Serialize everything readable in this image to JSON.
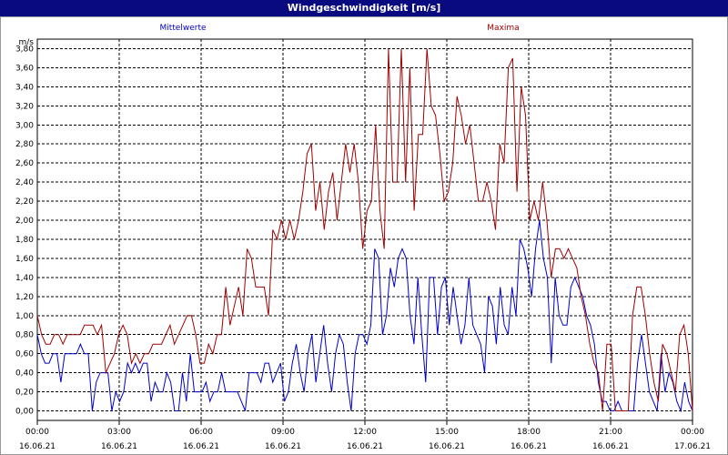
{
  "window": {
    "title": "Windgeschwindigkeit [m/s]"
  },
  "chart_data": {
    "type": "line",
    "ylabel": "m/s",
    "ylim": [
      -0.1,
      3.9
    ],
    "yticks": [
      "0,00",
      "0,20",
      "0,40",
      "0,60",
      "0,80",
      "1,00",
      "1,20",
      "1,40",
      "1,60",
      "1,80",
      "2,00",
      "2,20",
      "2,40",
      "2,60",
      "2,80",
      "3,00",
      "3,20",
      "3,40",
      "3,60",
      "3,80"
    ],
    "xlim_hours": [
      0,
      24
    ],
    "xticks": [
      {
        "time": "00:00",
        "date": "16.06.21"
      },
      {
        "time": "03:00",
        "date": "16.06.21"
      },
      {
        "time": "06:00",
        "date": "16.06.21"
      },
      {
        "time": "09:00",
        "date": "16.06.21"
      },
      {
        "time": "12:00",
        "date": "16.06.21"
      },
      {
        "time": "15:00",
        "date": "16.06.21"
      },
      {
        "time": "18:00",
        "date": "16.06.21"
      },
      {
        "time": "21:00",
        "date": "16.06.21"
      },
      {
        "time": "00:00",
        "date": "17.06.21"
      }
    ],
    "grid": true,
    "series": [
      {
        "name": "Mittelwerte",
        "color": "#0000cc",
        "values": [
          0.8,
          0.6,
          0.5,
          0.5,
          0.6,
          0.6,
          0.3,
          0.6,
          0.6,
          0.6,
          0.6,
          0.7,
          0.6,
          0.6,
          0.0,
          0.3,
          0.4,
          0.4,
          0.4,
          0.0,
          0.2,
          0.1,
          0.2,
          0.5,
          0.4,
          0.5,
          0.4,
          0.5,
          0.5,
          0.1,
          0.3,
          0.2,
          0.2,
          0.4,
          0.3,
          0.0,
          0.0,
          0.4,
          0.1,
          0.6,
          0.2,
          0.2,
          0.2,
          0.3,
          0.1,
          0.2,
          0.2,
          0.4,
          0.2,
          0.2,
          0.2,
          0.2,
          0.1,
          0.0,
          0.4,
          0.4,
          0.4,
          0.3,
          0.5,
          0.5,
          0.3,
          0.4,
          0.5,
          0.1,
          0.2,
          0.5,
          0.7,
          0.4,
          0.2,
          0.6,
          0.8,
          0.3,
          0.6,
          0.9,
          0.5,
          0.2,
          0.6,
          0.8,
          0.7,
          0.3,
          0.0,
          0.6,
          0.8,
          0.8,
          0.7,
          0.9,
          1.7,
          1.6,
          0.8,
          1.0,
          1.5,
          1.3,
          1.6,
          1.7,
          1.6,
          1.0,
          0.7,
          1.4,
          0.8,
          0.3,
          1.4,
          1.4,
          0.8,
          1.3,
          1.4,
          0.9,
          1.3,
          1.0,
          0.7,
          0.9,
          1.4,
          0.9,
          0.8,
          0.7,
          0.4,
          1.2,
          1.1,
          0.7,
          1.3,
          0.9,
          0.8,
          1.3,
          1.0,
          1.8,
          1.7,
          1.5,
          1.2,
          1.7,
          2.0,
          1.6,
          1.4,
          0.5,
          1.4,
          1.0,
          0.9,
          0.9,
          1.3,
          1.4,
          1.3,
          1.2,
          1.0,
          0.9,
          0.7,
          0.3,
          0.1,
          0.1,
          0.0,
          0.0,
          0.1,
          0.0,
          0.0,
          0.0,
          0.0,
          0.5,
          0.8,
          0.5,
          0.2,
          0.1,
          0.0,
          0.6,
          0.2,
          0.4,
          0.3,
          0.1,
          0.0,
          0.3,
          0.1,
          0.0
        ]
      },
      {
        "name": "Maxima",
        "color": "#a00000",
        "values": [
          1.0,
          0.8,
          0.7,
          0.7,
          0.8,
          0.8,
          0.7,
          0.8,
          0.8,
          0.8,
          0.8,
          0.9,
          0.9,
          0.9,
          0.8,
          0.9,
          0.4,
          0.5,
          0.6,
          0.8,
          0.9,
          0.8,
          0.5,
          0.6,
          0.5,
          0.6,
          0.6,
          0.7,
          0.7,
          0.7,
          0.8,
          0.9,
          0.7,
          0.8,
          0.9,
          1.0,
          1.0,
          0.8,
          0.5,
          0.5,
          0.7,
          0.6,
          0.8,
          0.8,
          1.3,
          0.9,
          1.1,
          1.3,
          1.0,
          1.7,
          1.6,
          1.3,
          1.3,
          1.3,
          1.0,
          1.9,
          1.8,
          2.0,
          1.8,
          2.0,
          1.8,
          2.0,
          2.3,
          2.7,
          2.8,
          2.1,
          2.4,
          1.9,
          2.3,
          2.5,
          2.0,
          2.4,
          2.8,
          2.5,
          2.8,
          2.4,
          1.7,
          2.1,
          2.2,
          3.0,
          2.1,
          1.7,
          3.8,
          2.4,
          2.4,
          3.8,
          2.4,
          3.6,
          2.1,
          2.9,
          2.9,
          3.8,
          3.2,
          3.1,
          2.7,
          2.2,
          2.3,
          2.6,
          3.3,
          3.1,
          2.8,
          3.0,
          2.6,
          2.2,
          2.2,
          2.4,
          2.2,
          1.9,
          2.8,
          2.6,
          3.6,
          3.7,
          2.3,
          3.4,
          3.1,
          2.0,
          2.2,
          2.0,
          2.4,
          2.0,
          1.4,
          1.7,
          1.7,
          1.6,
          1.7,
          1.6,
          1.5,
          1.2,
          1.0,
          0.7,
          0.5,
          0.4,
          0.0,
          0.7,
          0.7,
          0.0,
          0.0,
          0.0,
          0.0,
          1.0,
          1.3,
          1.3,
          1.0,
          0.6,
          0.3,
          0.1,
          0.7,
          0.6,
          0.4,
          0.2,
          0.8,
          0.9,
          0.6,
          0.0
        ]
      }
    ]
  }
}
